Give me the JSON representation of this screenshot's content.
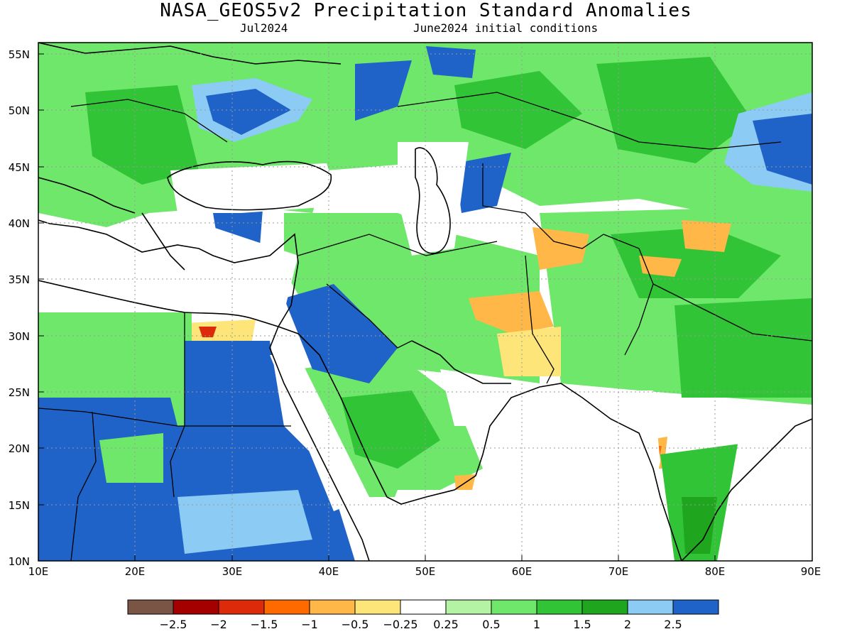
{
  "title": "NASA_GEOS5v2 Precipitation Standard Anomalies",
  "subtitle_left": "Jul2024",
  "subtitle_right": "June2024 initial conditions",
  "axes": {
    "lon_range": [
      10,
      90
    ],
    "lat_range": [
      10,
      56
    ],
    "x_tick_labels": [
      "10E",
      "20E",
      "30E",
      "40E",
      "50E",
      "60E",
      "70E",
      "80E",
      "90E"
    ],
    "y_tick_labels": [
      "10N",
      "15N",
      "20N",
      "25N",
      "30N",
      "35N",
      "40N",
      "45N",
      "50N",
      "55N"
    ],
    "grid": "dotted"
  },
  "colorbar": {
    "colors": [
      "#7a5545",
      "#a40000",
      "#dc2a0a",
      "#ff6a00",
      "#ffb848",
      "#fde57a",
      "#ffffff",
      "#b4f2a4",
      "#6ee76a",
      "#32c437",
      "#1fa61e",
      "#8ccbf3",
      "#1f63c9"
    ],
    "labels": [
      "−2.5",
      "−2",
      "−1.5",
      "−1",
      "−0.5",
      "−0.25",
      "0.25",
      "0.5",
      "1",
      "1.5",
      "2",
      "2.5"
    ]
  }
}
